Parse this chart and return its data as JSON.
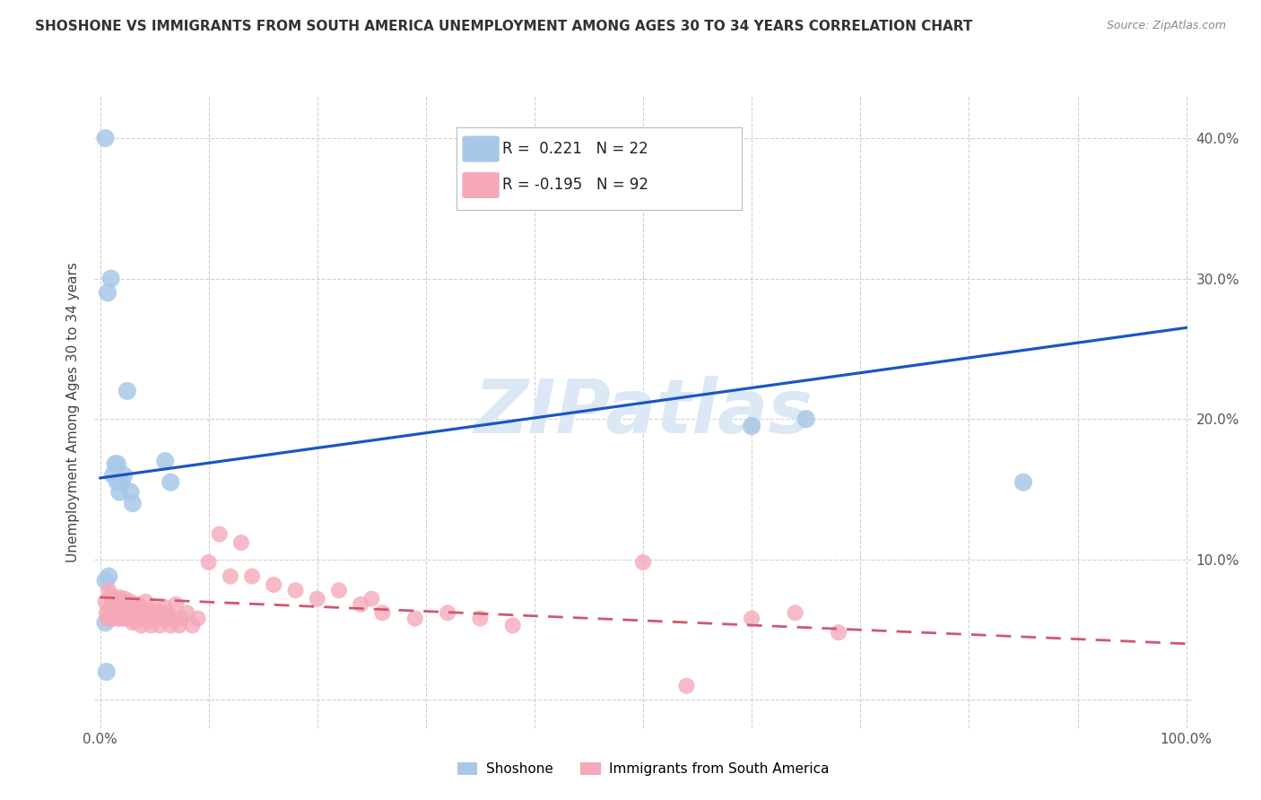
{
  "title": "SHOSHONE VS IMMIGRANTS FROM SOUTH AMERICA UNEMPLOYMENT AMONG AGES 30 TO 34 YEARS CORRELATION CHART",
  "source": "Source: ZipAtlas.com",
  "ylabel": "Unemployment Among Ages 30 to 34 years",
  "xlim": [
    -0.005,
    1.005
  ],
  "ylim": [
    -0.02,
    0.43
  ],
  "xticks": [
    0.0,
    0.1,
    0.2,
    0.3,
    0.4,
    0.5,
    0.6,
    0.7,
    0.8,
    0.9,
    1.0
  ],
  "xticklabels": [
    "0.0%",
    "",
    "",
    "",
    "",
    "",
    "",
    "",
    "",
    "",
    "100.0%"
  ],
  "yticks": [
    0.0,
    0.1,
    0.2,
    0.3,
    0.4
  ],
  "yticklabels_left": [
    "",
    "",
    "",
    "",
    ""
  ],
  "yticklabels_right": [
    "",
    "10.0%",
    "20.0%",
    "30.0%",
    "40.0%"
  ],
  "legend_blue_r": " 0.221",
  "legend_blue_n": "22",
  "legend_pink_r": "-0.195",
  "legend_pink_n": "92",
  "legend_blue_label": "Shoshone",
  "legend_pink_label": "Immigrants from South America",
  "blue_color": "#a8c8e8",
  "pink_color": "#f4a8b8",
  "blue_line_color": "#1a56c4",
  "pink_line_color": "#d05870",
  "watermark": "ZIPatlas",
  "shoshone_x": [
    0.005,
    0.005,
    0.008,
    0.01,
    0.012,
    0.014,
    0.016,
    0.016,
    0.018,
    0.02,
    0.022,
    0.025,
    0.028,
    0.03,
    0.06,
    0.065,
    0.6,
    0.65,
    0.85,
    0.005,
    0.006,
    0.007
  ],
  "shoshone_y": [
    0.4,
    0.085,
    0.088,
    0.3,
    0.16,
    0.168,
    0.168,
    0.155,
    0.148,
    0.155,
    0.16,
    0.22,
    0.148,
    0.14,
    0.17,
    0.155,
    0.195,
    0.2,
    0.155,
    0.055,
    0.02,
    0.29
  ],
  "immigrants_x": [
    0.005,
    0.006,
    0.007,
    0.008,
    0.009,
    0.01,
    0.01,
    0.011,
    0.012,
    0.013,
    0.013,
    0.014,
    0.015,
    0.015,
    0.016,
    0.016,
    0.017,
    0.018,
    0.018,
    0.019,
    0.02,
    0.02,
    0.021,
    0.022,
    0.022,
    0.023,
    0.024,
    0.025,
    0.026,
    0.026,
    0.027,
    0.028,
    0.029,
    0.03,
    0.03,
    0.031,
    0.032,
    0.033,
    0.034,
    0.035,
    0.035,
    0.036,
    0.037,
    0.038,
    0.039,
    0.04,
    0.04,
    0.041,
    0.042,
    0.043,
    0.044,
    0.045,
    0.046,
    0.047,
    0.048,
    0.05,
    0.052,
    0.053,
    0.055,
    0.057,
    0.06,
    0.062,
    0.063,
    0.065,
    0.068,
    0.07,
    0.073,
    0.075,
    0.08,
    0.085,
    0.09,
    0.1,
    0.11,
    0.12,
    0.13,
    0.14,
    0.16,
    0.18,
    0.2,
    0.22,
    0.24,
    0.25,
    0.26,
    0.29,
    0.32,
    0.35,
    0.38,
    0.5,
    0.54,
    0.6,
    0.64,
    0.68
  ],
  "immigrants_y": [
    0.07,
    0.062,
    0.058,
    0.078,
    0.065,
    0.058,
    0.074,
    0.072,
    0.06,
    0.062,
    0.068,
    0.07,
    0.058,
    0.072,
    0.062,
    0.068,
    0.064,
    0.058,
    0.073,
    0.062,
    0.058,
    0.07,
    0.065,
    0.062,
    0.058,
    0.072,
    0.066,
    0.058,
    0.068,
    0.06,
    0.062,
    0.07,
    0.064,
    0.062,
    0.055,
    0.065,
    0.058,
    0.056,
    0.062,
    0.058,
    0.068,
    0.062,
    0.058,
    0.053,
    0.066,
    0.058,
    0.062,
    0.064,
    0.07,
    0.056,
    0.058,
    0.06,
    0.062,
    0.053,
    0.06,
    0.065,
    0.058,
    0.063,
    0.053,
    0.058,
    0.066,
    0.062,
    0.058,
    0.053,
    0.058,
    0.068,
    0.053,
    0.058,
    0.062,
    0.053,
    0.058,
    0.098,
    0.118,
    0.088,
    0.112,
    0.088,
    0.082,
    0.078,
    0.072,
    0.078,
    0.068,
    0.072,
    0.062,
    0.058,
    0.062,
    0.058,
    0.053,
    0.098,
    0.01,
    0.058,
    0.062,
    0.048
  ],
  "blue_trendline_x": [
    0.0,
    1.0
  ],
  "blue_trendline_y": [
    0.158,
    0.265
  ],
  "pink_trendline_x": [
    0.0,
    1.0
  ],
  "pink_trendline_y": [
    0.073,
    0.04
  ],
  "grid_color": "#cccccc",
  "tick_color": "#555555",
  "bg_color": "#ffffff"
}
